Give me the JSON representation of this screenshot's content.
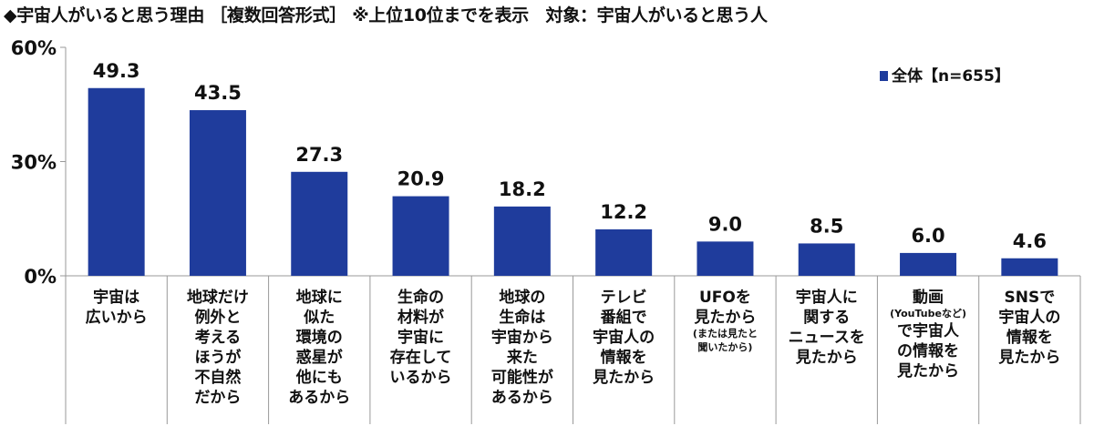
{
  "title": "◆宇宙人がいると思う理由 ［複数回答形式］ ※上位10位までを表示　対象：宇宙人がいると思う人",
  "chart_data": {
    "type": "bar",
    "categories": [
      {
        "lines": [
          "宇宙は",
          "広いから"
        ]
      },
      {
        "lines": [
          "地球だけ",
          "例外と",
          "考える",
          "ほうが",
          "不自然",
          "だから"
        ]
      },
      {
        "lines": [
          "地球に",
          "似た",
          "環境の",
          "惑星が",
          "他にも",
          "あるから"
        ]
      },
      {
        "lines": [
          "生命の",
          "材料が",
          "宇宙に",
          "存在して",
          "いるから"
        ]
      },
      {
        "lines": [
          "地球の",
          "生命は",
          "宇宙から",
          "来た",
          "可能性が",
          "あるから"
        ]
      },
      {
        "lines": [
          "テレビ",
          "番組で",
          "宇宙人の",
          "情報を",
          "見たから"
        ]
      },
      {
        "lines": [
          "UFOを",
          "見たから"
        ],
        "note": [
          "(または見たと",
          "聞いたから)"
        ]
      },
      {
        "lines": [
          "宇宙人に",
          "関する",
          "ニュースを",
          "見たから"
        ]
      },
      {
        "lines": [
          "動画"
        ],
        "note": [
          "(YouTubeなど)"
        ],
        "after": [
          "で宇宙人",
          "の情報を",
          "見たから"
        ]
      },
      {
        "lines": [
          "SNSで",
          "宇宙人の",
          "情報を",
          "見たから"
        ]
      }
    ],
    "series": [
      {
        "name": "全体【n=655】",
        "values": [
          49.3,
          43.5,
          27.3,
          20.9,
          18.2,
          12.2,
          9.0,
          8.5,
          6.0,
          4.6
        ],
        "color": "#1f3c9c"
      }
    ],
    "value_labels": [
      "49.3",
      "43.5",
      "27.3",
      "20.9",
      "18.2",
      "12.2",
      "9.0",
      "8.5",
      "6.0",
      "4.6"
    ],
    "y_ticks": [
      {
        "value": 0,
        "label": "0%"
      },
      {
        "value": 30,
        "label": "30%"
      },
      {
        "value": 60,
        "label": "60%"
      }
    ],
    "ylim": [
      0,
      60
    ],
    "legend_position": "top-right",
    "grid": false
  }
}
